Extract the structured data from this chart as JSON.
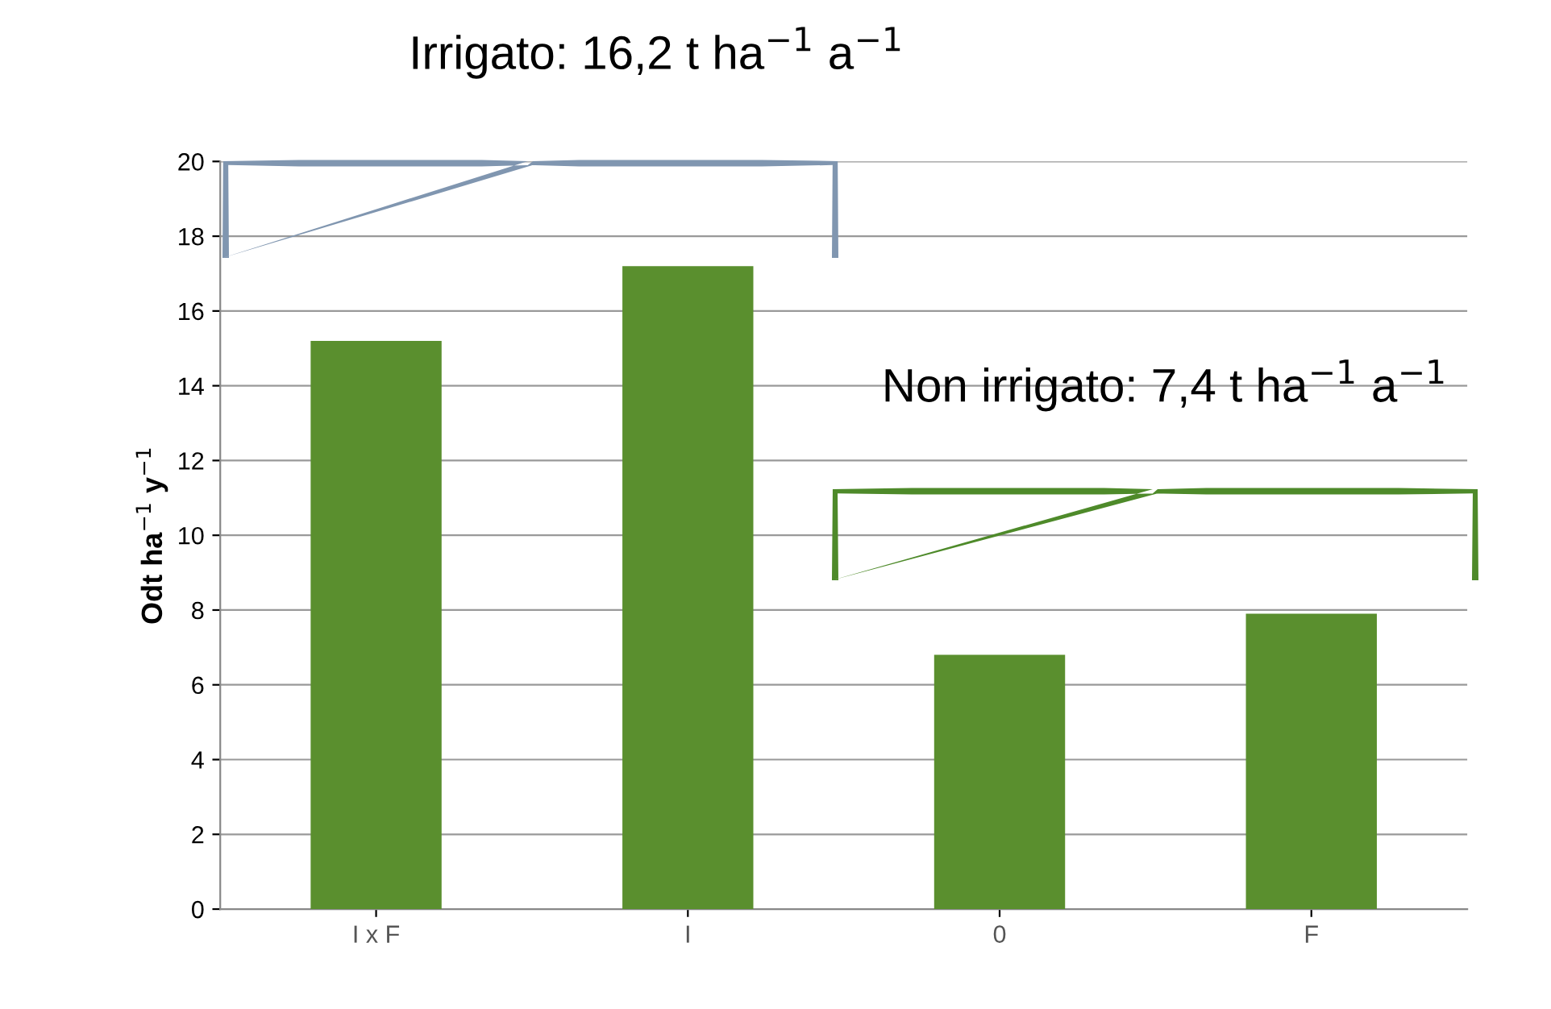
{
  "chart_data": {
    "type": "bar",
    "ylabel": "Odt ha$^{−1}$ y$^{−1}$",
    "categories": [
      "I x F",
      "I",
      "0",
      "F"
    ],
    "values": [
      15.2,
      17.2,
      6.8,
      7.9
    ],
    "color": "#5a8f2e",
    "ylim": [
      0,
      20
    ],
    "yticks": [
      0,
      2,
      4,
      6,
      8,
      10,
      12,
      14,
      16,
      18,
      20
    ],
    "grid": "y",
    "annotations": [
      "Irrigato: 16,2 t ha$^{−1}$ a$^{−1}$",
      "Non irrigato: 7,4 t ha$^{−1}$ a$^{−1}$"
    ]
  }
}
